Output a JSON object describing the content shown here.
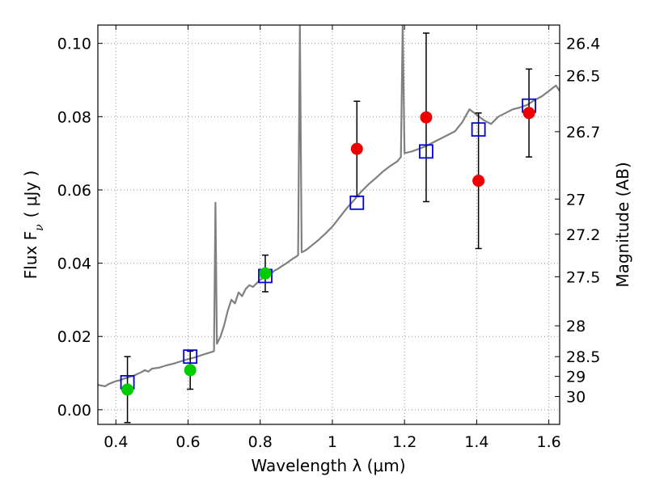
{
  "chart_data": {
    "type": "scatter",
    "xlabel": "Wavelength  λ (μm)",
    "ylabel": "Flux  F",
    "ylabel_sub": "ν",
    "ylabel_unit": "( μJy )",
    "y2label": "Magnitude (AB)",
    "xlim": [
      0.35,
      1.63
    ],
    "ylim": [
      -0.004,
      0.105
    ],
    "grid": true,
    "x_ticks": [
      0.4,
      0.6,
      0.8,
      1.0,
      1.2,
      1.4,
      1.6
    ],
    "x_tick_labels": [
      "0.4",
      "0.6",
      "0.8",
      "1",
      "1.2",
      "1.4",
      "1.6"
    ],
    "y_ticks": [
      0.0,
      0.02,
      0.04,
      0.06,
      0.08,
      0.1
    ],
    "y_tick_labels": [
      "0.00",
      "0.02",
      "0.04",
      "0.06",
      "0.08",
      "0.10"
    ],
    "y2_ticks": [
      {
        "label": "26.4",
        "flux": 0.1
      },
      {
        "label": "26.5",
        "flux": 0.0912
      },
      {
        "label": "26.7",
        "flux": 0.0759
      },
      {
        "label": "27",
        "flux": 0.0575
      },
      {
        "label": "27.2",
        "flux": 0.0479
      },
      {
        "label": "27.5",
        "flux": 0.0363
      },
      {
        "label": "28",
        "flux": 0.0229
      },
      {
        "label": "28.5",
        "flux": 0.0145
      },
      {
        "label": "29",
        "flux": 0.0091
      },
      {
        "label": "30",
        "flux": 0.0036
      }
    ],
    "series": [
      {
        "kind": "spectrum",
        "color": "#808080",
        "points": [
          [
            0.35,
            0.0068
          ],
          [
            0.36,
            0.0066
          ],
          [
            0.37,
            0.0064
          ],
          [
            0.38,
            0.007
          ],
          [
            0.39,
            0.0074
          ],
          [
            0.4,
            0.0078
          ],
          [
            0.41,
            0.008
          ],
          [
            0.42,
            0.0084
          ],
          [
            0.43,
            0.0087
          ],
          [
            0.44,
            0.009
          ],
          [
            0.45,
            0.0093
          ],
          [
            0.46,
            0.0098
          ],
          [
            0.47,
            0.0102
          ],
          [
            0.48,
            0.0108
          ],
          [
            0.49,
            0.0104
          ],
          [
            0.5,
            0.0112
          ],
          [
            0.52,
            0.0115
          ],
          [
            0.54,
            0.0121
          ],
          [
            0.56,
            0.0126
          ],
          [
            0.58,
            0.0132
          ],
          [
            0.6,
            0.0138
          ],
          [
            0.62,
            0.0143
          ],
          [
            0.64,
            0.015
          ],
          [
            0.66,
            0.0156
          ],
          [
            0.672,
            0.016
          ],
          [
            0.676,
            0.0565
          ],
          [
            0.68,
            0.018
          ],
          [
            0.69,
            0.02
          ],
          [
            0.7,
            0.023
          ],
          [
            0.71,
            0.027
          ],
          [
            0.72,
            0.03
          ],
          [
            0.73,
            0.029
          ],
          [
            0.74,
            0.032
          ],
          [
            0.75,
            0.031
          ],
          [
            0.76,
            0.033
          ],
          [
            0.77,
            0.034
          ],
          [
            0.78,
            0.0335
          ],
          [
            0.79,
            0.0345
          ],
          [
            0.8,
            0.0355
          ],
          [
            0.81,
            0.036
          ],
          [
            0.82,
            0.0366
          ],
          [
            0.83,
            0.0372
          ],
          [
            0.84,
            0.038
          ],
          [
            0.85,
            0.0385
          ],
          [
            0.86,
            0.0392
          ],
          [
            0.87,
            0.0398
          ],
          [
            0.88,
            0.0405
          ],
          [
            0.89,
            0.0412
          ],
          [
            0.9,
            0.0418
          ],
          [
            0.905,
            0.0422
          ],
          [
            0.91,
            0.105
          ],
          [
            0.915,
            0.043
          ],
          [
            0.92,
            0.0432
          ],
          [
            0.93,
            0.0438
          ],
          [
            0.94,
            0.0446
          ],
          [
            0.96,
            0.0462
          ],
          [
            0.98,
            0.048
          ],
          [
            1.0,
            0.05
          ],
          [
            1.02,
            0.0525
          ],
          [
            1.04,
            0.055
          ],
          [
            1.06,
            0.0572
          ],
          [
            1.08,
            0.0595
          ],
          [
            1.1,
            0.0615
          ],
          [
            1.12,
            0.0632
          ],
          [
            1.14,
            0.065
          ],
          [
            1.16,
            0.0665
          ],
          [
            1.18,
            0.0678
          ],
          [
            1.19,
            0.069
          ],
          [
            1.195,
            0.105
          ],
          [
            1.2,
            0.07
          ],
          [
            1.22,
            0.0705
          ],
          [
            1.24,
            0.0712
          ],
          [
            1.26,
            0.072
          ],
          [
            1.28,
            0.073
          ],
          [
            1.3,
            0.074
          ],
          [
            1.32,
            0.075
          ],
          [
            1.34,
            0.076
          ],
          [
            1.36,
            0.0785
          ],
          [
            1.38,
            0.082
          ],
          [
            1.4,
            0.0805
          ],
          [
            1.42,
            0.079
          ],
          [
            1.44,
            0.078
          ],
          [
            1.46,
            0.08
          ],
          [
            1.48,
            0.081
          ],
          [
            1.5,
            0.082
          ],
          [
            1.52,
            0.0825
          ],
          [
            1.54,
            0.0832
          ],
          [
            1.56,
            0.0845
          ],
          [
            1.58,
            0.0855
          ],
          [
            1.6,
            0.087
          ],
          [
            1.62,
            0.0885
          ],
          [
            1.63,
            0.087
          ]
        ]
      },
      {
        "kind": "model-photometry",
        "marker": "open-square",
        "color": "#0000dd",
        "x": [
          0.432,
          0.606,
          0.814,
          1.068,
          1.26,
          1.405,
          1.545
        ],
        "y": [
          0.0075,
          0.0145,
          0.0365,
          0.0565,
          0.0705,
          0.0765,
          0.083
        ]
      },
      {
        "kind": "observed-optical",
        "marker": "filled-circle",
        "color": "#00cc00",
        "x": [
          0.432,
          0.606,
          0.814
        ],
        "y": [
          0.0055,
          0.0108,
          0.0372
        ],
        "err": [
          0.009,
          0.0052,
          0.005
        ]
      },
      {
        "kind": "observed-nir",
        "marker": "filled-circle",
        "color": "#ee0000",
        "x": [
          1.068,
          1.26,
          1.405,
          1.545
        ],
        "y": [
          0.0712,
          0.0798,
          0.0625,
          0.081
        ],
        "err": [
          0.013,
          0.023,
          0.0185,
          0.012
        ]
      }
    ]
  }
}
